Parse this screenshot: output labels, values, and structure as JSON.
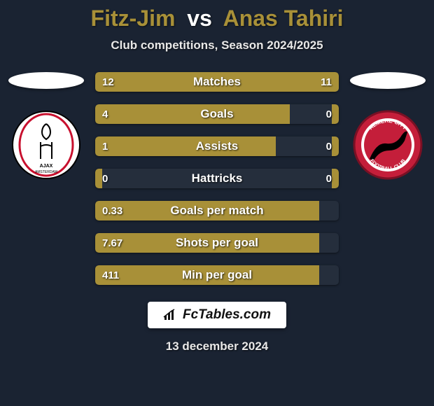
{
  "title": {
    "player1": "Fitz-Jim",
    "vs": "vs",
    "player2": "Anas Tahiri",
    "player1_color": "#a89038",
    "player2_color": "#a89038"
  },
  "subtitle": "Club competitions, Season 2024/2025",
  "stats_style": {
    "bar_color_p1": "#a89038",
    "bar_color_p2": "#a89038",
    "track_color": "rgba(255,255,255,0.05)"
  },
  "left_club": {
    "name": "Ajax",
    "badge_bg": "#ffffff"
  },
  "right_club": {
    "name": "Almere City",
    "badge_bg": "#c41e3a"
  },
  "stats": [
    {
      "label": "Matches",
      "left_value": "12",
      "right_value": "11",
      "left_pct": 52,
      "right_pct": 48
    },
    {
      "label": "Goals",
      "left_value": "4",
      "right_value": "0",
      "left_pct": 80,
      "right_pct": 3
    },
    {
      "label": "Assists",
      "left_value": "1",
      "right_value": "0",
      "left_pct": 74,
      "right_pct": 3
    },
    {
      "label": "Hattricks",
      "left_value": "0",
      "right_value": "0",
      "left_pct": 3,
      "right_pct": 3
    },
    {
      "label": "Goals per match",
      "left_value": "0.33",
      "right_value": "",
      "left_pct": 92,
      "right_pct": 0
    },
    {
      "label": "Shots per goal",
      "left_value": "7.67",
      "right_value": "",
      "left_pct": 92,
      "right_pct": 0
    },
    {
      "label": "Min per goal",
      "left_value": "411",
      "right_value": "",
      "left_pct": 92,
      "right_pct": 0
    }
  ],
  "brand": "FcTables.com",
  "date": "13 december 2024",
  "colors": {
    "background": "#1a2332",
    "text": "#ffffff"
  }
}
